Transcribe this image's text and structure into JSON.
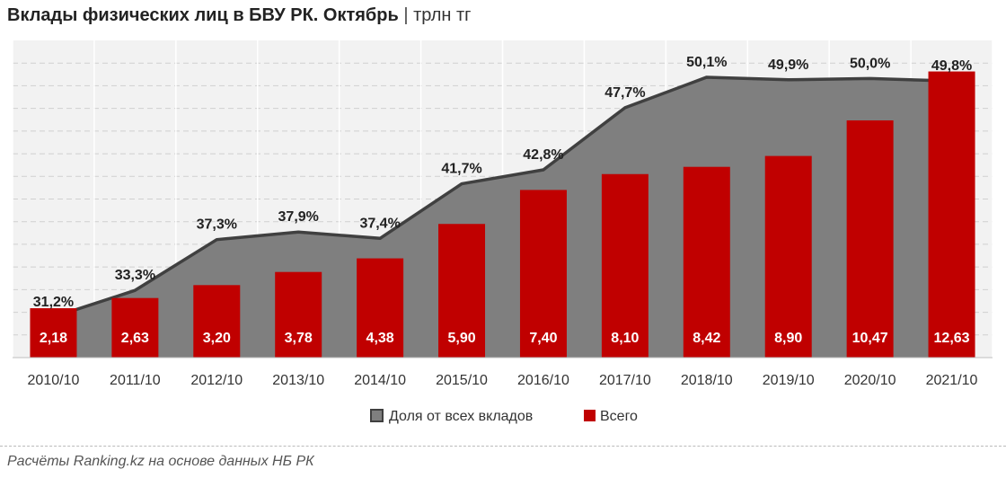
{
  "title": {
    "main": "Вклады физических лиц в БВУ РК. Октябрь",
    "separator": "|",
    "unit": "трлн тг"
  },
  "source": "Расчёты Ranking.kz на основе данных НБ РК",
  "colors": {
    "bar": "#c00000",
    "area": "#7f7f7f",
    "line": "#404040",
    "plot_bg": "#f2f2f2"
  },
  "chart_data": {
    "type": "bar",
    "categories": [
      "2010/10",
      "2011/10",
      "2012/10",
      "2013/10",
      "2014/10",
      "2015/10",
      "2016/10",
      "2017/10",
      "2018/10",
      "2019/10",
      "2020/10",
      "2021/10"
    ],
    "series": [
      {
        "name": "Всего",
        "type": "bar",
        "axis": "left",
        "values": [
          2.18,
          2.63,
          3.2,
          3.78,
          4.38,
          5.9,
          7.4,
          8.1,
          8.42,
          8.9,
          10.47,
          12.63
        ],
        "labels": [
          "2,18",
          "2,63",
          "3,20",
          "3,78",
          "4,38",
          "5,90",
          "7,40",
          "8,10",
          "8,42",
          "8,90",
          "10,47",
          "12,63"
        ]
      },
      {
        "name": "Доля от всех вкладов",
        "type": "area",
        "axis": "right",
        "values": [
          31.2,
          33.3,
          37.3,
          37.9,
          37.4,
          41.7,
          42.8,
          47.7,
          50.1,
          49.9,
          50.0,
          49.8
        ],
        "labels": [
          "31,2%",
          "33,3%",
          "37,3%",
          "37,9%",
          "37,4%",
          "41,7%",
          "42,8%",
          "47,7%",
          "50,1%",
          "49,9%",
          "50,0%",
          "49,8%"
        ]
      }
    ],
    "ylim_left": [
      0,
      14
    ],
    "ylim_right": [
      28,
      53
    ],
    "grid": true,
    "legend_position": "bottom",
    "legend": [
      "Доля от всех вкладов",
      "Всего"
    ]
  }
}
